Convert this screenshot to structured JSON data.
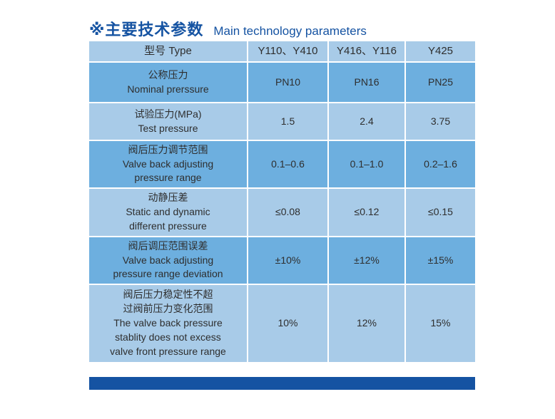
{
  "page": {
    "title_zh": "※主要技术参数",
    "title_en": "Main technology parameters",
    "title_color": "#1553a2",
    "background_color": "#ffffff"
  },
  "table": {
    "colors": {
      "row_light": "#a8cbe8",
      "row_medium": "#6dafdf",
      "divider": "#ffffff",
      "text": "#2e2e2e"
    },
    "header": [
      "型号 Type",
      "Y110、Y410",
      "Y416、Y116",
      "Y425"
    ],
    "rows": [
      {
        "label": "公称压力\nNominal prerssure",
        "values": [
          "PN10",
          "PN16",
          "PN25"
        ]
      },
      {
        "label": "试验压力(MPa)\nTest pressure",
        "values": [
          "1.5",
          "2.4",
          "3.75"
        ]
      },
      {
        "label": "阀后压力调节范围\nValve back adjusting\npressure range",
        "values": [
          "0.1–0.6",
          "0.1–1.0",
          "0.2–1.6"
        ]
      },
      {
        "label": "动静压差\nStatic and dynamic\ndifferent pressure",
        "values": [
          "≤0.08",
          "≤0.12",
          "≤0.15"
        ]
      },
      {
        "label": "阀后调压范围误差\nValve back adjusting\npressure range deviation",
        "values": [
          "±10%",
          "±12%",
          "±15%"
        ]
      },
      {
        "label": "阀后压力稳定性不超\n过阀前压力变化范围\nThe valve back pressure\nstablity does not excess\nvalve front pressure range",
        "values": [
          "10%",
          "12%",
          "15%"
        ]
      }
    ]
  },
  "footer": {
    "bar_color": "#1553a2"
  }
}
